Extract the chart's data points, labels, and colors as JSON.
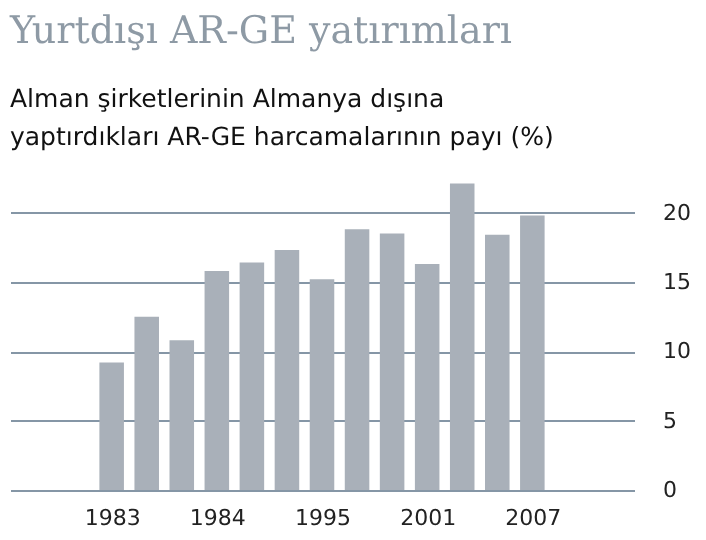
{
  "chart_data": {
    "type": "bar",
    "title": "Yurtdışı AR-GE yatırımları",
    "subtitle": [
      "Alman şirketlerinin Almanya dışına",
      "yaptırdıkları AR-GE harcamalarının payı (%)"
    ],
    "categories": [
      "1983",
      null,
      null,
      "1984",
      null,
      null,
      "1995",
      null,
      null,
      "2001",
      null,
      null,
      "2007"
    ],
    "values": [
      9.2,
      12.5,
      10.8,
      15.8,
      16.4,
      17.3,
      15.2,
      18.8,
      18.5,
      16.3,
      22.1,
      18.4,
      19.8
    ],
    "color": "#a9b0b9",
    "ylim": [
      0,
      22.5
    ],
    "yticks": [
      0,
      5,
      10,
      15,
      20
    ],
    "grid": "y"
  }
}
